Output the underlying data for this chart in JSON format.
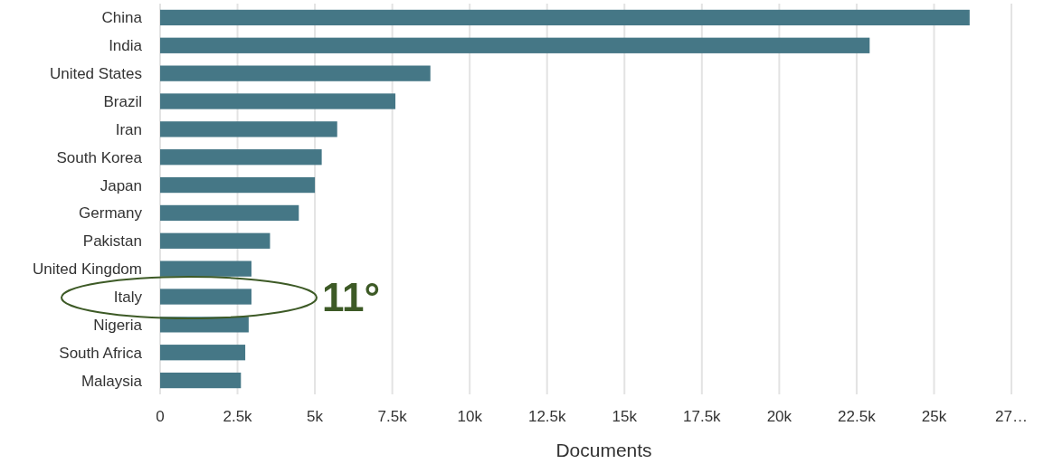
{
  "chart_data": {
    "type": "bar",
    "orientation": "horizontal",
    "xlabel": "Documents",
    "categories": [
      "China",
      "India",
      "United States",
      "Brazil",
      "Iran",
      "South Korea",
      "Japan",
      "Germany",
      "Pakistan",
      "United Kingdom",
      "Italy",
      "Nigeria",
      "South Africa",
      "Malaysia"
    ],
    "values": [
      26150,
      22920,
      8730,
      7600,
      5720,
      5220,
      5000,
      4480,
      3550,
      2950,
      2950,
      2860,
      2750,
      2610
    ],
    "color": "#457786",
    "xlim": [
      0,
      27500
    ],
    "xticks": [
      {
        "value": 0,
        "label": "0"
      },
      {
        "value": 2500,
        "label": "2.5k"
      },
      {
        "value": 5000,
        "label": "5k"
      },
      {
        "value": 7500,
        "label": "7.5k"
      },
      {
        "value": 10000,
        "label": "10k"
      },
      {
        "value": 12500,
        "label": "12.5k"
      },
      {
        "value": 15000,
        "label": "15k"
      },
      {
        "value": 17500,
        "label": "17.5k"
      },
      {
        "value": 20000,
        "label": "20k"
      },
      {
        "value": 22500,
        "label": "22.5k"
      },
      {
        "value": 25000,
        "label": "25k"
      },
      {
        "value": 27500,
        "label": "27…"
      }
    ],
    "grid": "x",
    "annotations": [
      "11°"
    ]
  }
}
